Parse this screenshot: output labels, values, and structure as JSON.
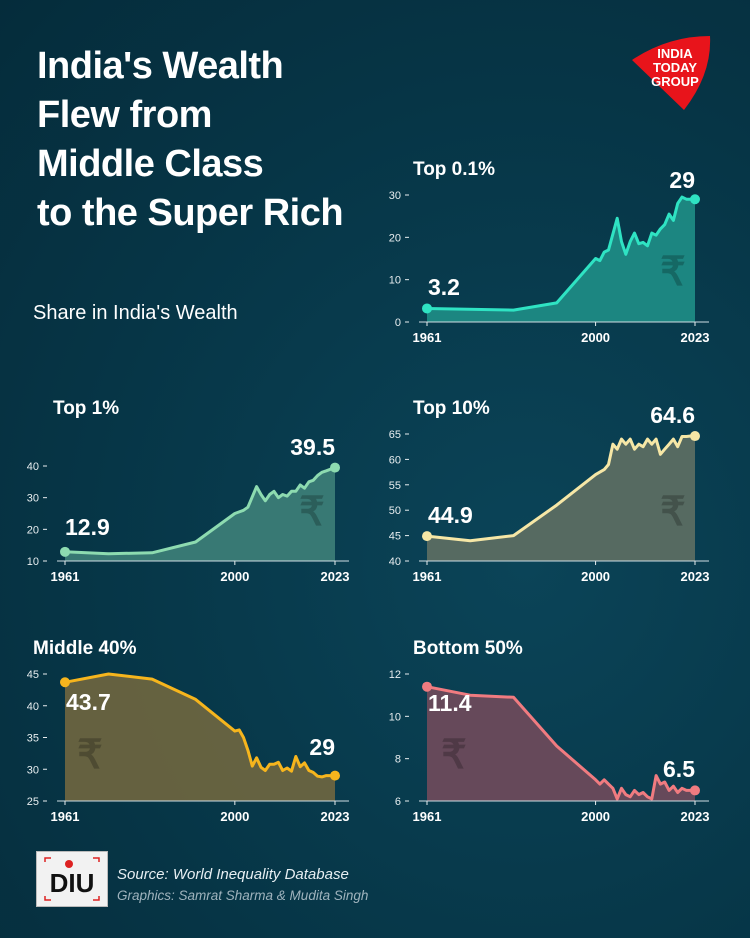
{
  "header": {
    "title_lines": [
      "India's Wealth",
      "Flew from",
      "Middle Class",
      "to the Super Rich"
    ],
    "subtitle": "Share in India's Wealth"
  },
  "brand": {
    "logo_text": "INDIA TODAY GROUP",
    "logo_color": "#e8141b",
    "unit_logo_text": "DIU"
  },
  "footer": {
    "source": "Source: World Inequality Database",
    "graphics": "Graphics: Samrat Sharma & Mudita Singh"
  },
  "colors": {
    "background": "#063546"
  },
  "chart_data": [
    {
      "type": "area",
      "title": "Top 0.1%",
      "line_color": "#2fe3c3",
      "fill_color": "#1d8a84",
      "ylim": [
        0,
        30
      ],
      "yticks": [
        0,
        10,
        20,
        30
      ],
      "xticks": [
        "1961",
        "2000",
        "2023"
      ],
      "start_label": "3.2",
      "end_label": "29",
      "x": [
        1961,
        1981,
        1991,
        2000,
        2001,
        2002,
        2003,
        2005,
        2006,
        2007,
        2008,
        2009,
        2010,
        2011,
        2012,
        2013,
        2014,
        2015,
        2016,
        2017,
        2018,
        2019,
        2020,
        2021,
        2022,
        2023
      ],
      "y": [
        3.2,
        2.8,
        4.5,
        15,
        14.5,
        16.5,
        17,
        24.5,
        19,
        16,
        19,
        21,
        18.5,
        18.8,
        18,
        21,
        20.5,
        22,
        23,
        25.5,
        24,
        28,
        29.5,
        29,
        29,
        29
      ]
    },
    {
      "type": "area",
      "title": "Top 1%",
      "line_color": "#8ddbb0",
      "fill_color": "#3b7c76",
      "ylim": [
        10,
        40
      ],
      "yticks": [
        10,
        20,
        30,
        40
      ],
      "xticks": [
        "1961",
        "2000",
        "2023"
      ],
      "start_label": "12.9",
      "end_label": "39.5",
      "x": [
        1961,
        1971,
        1981,
        1991,
        2000,
        2001,
        2002,
        2003,
        2005,
        2006,
        2007,
        2008,
        2009,
        2010,
        2011,
        2012,
        2013,
        2014,
        2015,
        2016,
        2017,
        2018,
        2019,
        2020,
        2021,
        2022,
        2023
      ],
      "y": [
        12.9,
        12.3,
        12.6,
        16,
        25,
        25.5,
        26,
        27,
        33.5,
        31,
        29,
        31,
        32,
        30,
        31,
        30.5,
        32,
        32,
        34,
        33,
        35,
        35.5,
        37,
        38,
        38.5,
        39,
        39.5
      ]
    },
    {
      "type": "area",
      "title": "Top 10%",
      "line_color": "#f6e7a6",
      "fill_color": "#5b6d62",
      "ylim": [
        40,
        65
      ],
      "yticks": [
        40,
        45,
        50,
        55,
        60,
        65
      ],
      "xticks": [
        "1961",
        "2000",
        "2023"
      ],
      "start_label": "44.9",
      "end_label": "64.6",
      "x": [
        1961,
        1971,
        1981,
        1991,
        2000,
        2001,
        2002,
        2003,
        2004,
        2005,
        2006,
        2007,
        2008,
        2009,
        2010,
        2011,
        2012,
        2013,
        2014,
        2015,
        2016,
        2017,
        2018,
        2019,
        2020,
        2021,
        2022,
        2023
      ],
      "y": [
        44.9,
        44,
        45,
        51,
        57,
        57.5,
        58,
        59,
        63,
        62,
        64,
        63,
        64,
        62,
        63,
        62.5,
        64,
        63,
        64,
        61,
        62,
        63,
        64,
        62.5,
        64.5,
        64.5,
        64.6,
        64.6
      ]
    },
    {
      "type": "area",
      "title": "Middle 40%",
      "line_color": "#f6b51d",
      "fill_color": "#6a6440",
      "ylim": [
        25,
        45
      ],
      "yticks": [
        25,
        30,
        35,
        40,
        45
      ],
      "xticks": [
        "1961",
        "2000",
        "2023"
      ],
      "start_label": "43.7",
      "end_label": "29",
      "x": [
        1961,
        1971,
        1981,
        1991,
        2000,
        2001,
        2002,
        2003,
        2004,
        2005,
        2006,
        2007,
        2008,
        2009,
        2010,
        2011,
        2012,
        2013,
        2014,
        2015,
        2016,
        2017,
        2018,
        2019,
        2020,
        2021,
        2022,
        2023
      ],
      "y": [
        43.7,
        45,
        44.2,
        41,
        36,
        36.2,
        35,
        33,
        30.5,
        31.8,
        30.3,
        29.8,
        30.8,
        30.8,
        31.1,
        29.8,
        30.2,
        29.7,
        32,
        30.4,
        31,
        29.8,
        29.5,
        28.9,
        28.8,
        29,
        29,
        29
      ]
    },
    {
      "type": "area",
      "title": "Bottom 50%",
      "line_color": "#f07b80",
      "fill_color": "#6c4a5b",
      "ylim": [
        6,
        12
      ],
      "yticks": [
        6,
        8,
        10,
        12
      ],
      "xticks": [
        "1961",
        "2000",
        "2023"
      ],
      "start_label": "11.4",
      "end_label": "6.5",
      "x": [
        1961,
        1971,
        1981,
        1991,
        2000,
        2001,
        2002,
        2003,
        2004,
        2005,
        2006,
        2007,
        2008,
        2009,
        2010,
        2011,
        2012,
        2013,
        2014,
        2015,
        2016,
        2017,
        2018,
        2019,
        2020,
        2021,
        2022,
        2023
      ],
      "y": [
        11.4,
        11,
        10.9,
        8.6,
        7,
        6.8,
        7,
        6.8,
        6.6,
        6.1,
        6.6,
        6.3,
        6.2,
        6.5,
        6.3,
        6.4,
        6.2,
        6.1,
        7.2,
        6.8,
        6.9,
        6.5,
        6.7,
        6.4,
        6.6,
        6.5,
        6.5,
        6.5
      ]
    }
  ]
}
